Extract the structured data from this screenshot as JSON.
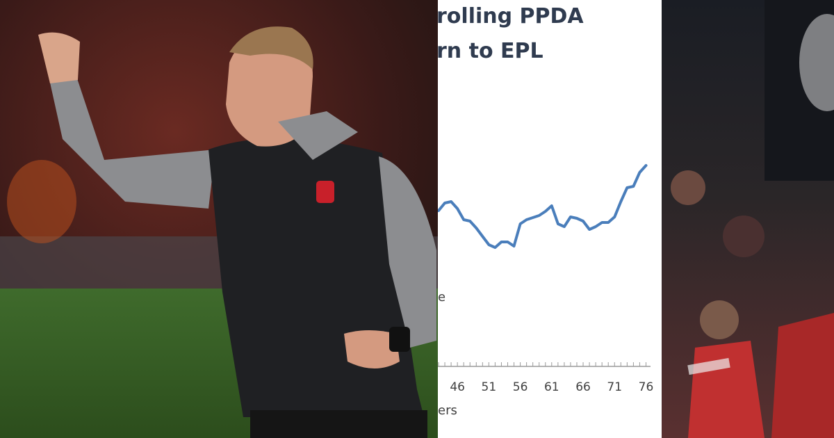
{
  "chart_data": {
    "type": "line",
    "title": [
      "rolling PPDA",
      "rn to EPL"
    ],
    "annotations": [
      "e"
    ],
    "xlabel": "ers",
    "x": [
      43,
      44,
      45,
      46,
      47,
      48,
      49,
      50,
      51,
      52,
      53,
      54,
      55,
      56,
      57,
      58,
      59,
      60,
      61,
      62,
      63,
      64,
      65,
      66,
      67,
      68,
      69,
      70,
      71,
      72,
      73,
      74,
      75,
      76
    ],
    "series": [
      {
        "color": "#4a7ebb",
        "values": [
          4.48,
          4.7,
          4.74,
          4.54,
          4.22,
          4.18,
          3.98,
          3.74,
          3.5,
          3.42,
          3.58,
          3.58,
          3.46,
          4.1,
          4.22,
          4.28,
          4.34,
          4.46,
          4.62,
          4.1,
          4.02,
          4.3,
          4.26,
          4.18,
          3.94,
          4.02,
          4.14,
          4.14,
          4.3,
          4.74,
          5.14,
          5.18,
          5.58,
          5.78
        ]
      }
    ],
    "xlim": [
      43,
      76.5
    ],
    "ylim": [
      0,
      10
    ],
    "xticks": [
      46,
      51,
      56,
      61,
      66,
      71,
      76
    ]
  }
}
